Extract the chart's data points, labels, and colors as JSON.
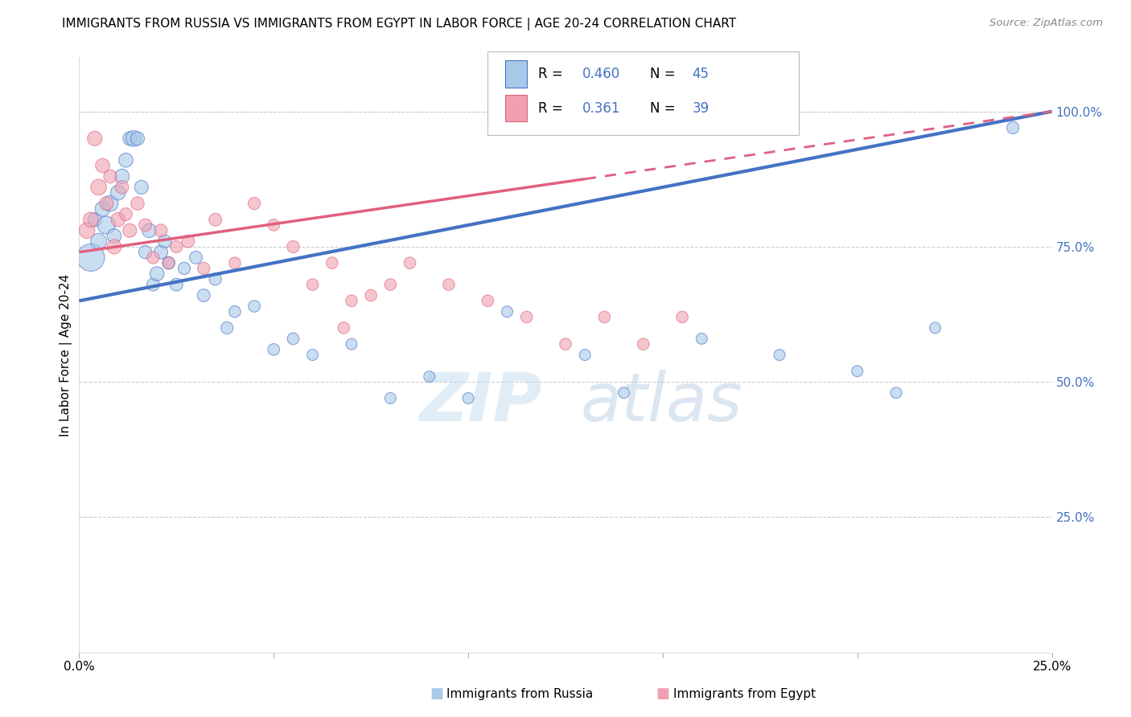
{
  "title": "IMMIGRANTS FROM RUSSIA VS IMMIGRANTS FROM EGYPT IN LABOR FORCE | AGE 20-24 CORRELATION CHART",
  "source": "Source: ZipAtlas.com",
  "ylabel": "In Labor Force | Age 20-24",
  "x_tick_labels": [
    "0.0%",
    "",
    "",
    "",
    "",
    "25.0%"
  ],
  "x_tick_values": [
    0.0,
    5.0,
    10.0,
    15.0,
    20.0,
    25.0
  ],
  "y_tick_labels_right": [
    "100.0%",
    "75.0%",
    "50.0%",
    "25.0%"
  ],
  "y_tick_values_right": [
    100.0,
    75.0,
    50.0,
    25.0
  ],
  "xlim": [
    0.0,
    25.0
  ],
  "ylim": [
    0.0,
    110.0
  ],
  "color_russia": "#a8c8e8",
  "color_egypt": "#f0a0b0",
  "color_russia_line": "#4472c4",
  "color_egypt_line": "#e06080",
  "color_r_value": "#4472c4",
  "russia_scatter_x": [
    0.3,
    0.4,
    0.5,
    0.6,
    0.7,
    0.8,
    0.9,
    1.0,
    1.1,
    1.2,
    1.3,
    1.4,
    1.5,
    1.6,
    1.7,
    1.8,
    1.9,
    2.0,
    2.1,
    2.2,
    2.3,
    2.5,
    2.7,
    3.0,
    3.2,
    3.5,
    3.8,
    4.0,
    4.5,
    5.0,
    5.5,
    6.0,
    7.0,
    8.0,
    9.0,
    10.0,
    11.0,
    13.0,
    14.0,
    16.0,
    18.0,
    20.0,
    21.0,
    22.0,
    24.0
  ],
  "russia_scatter_y": [
    73,
    80,
    76,
    82,
    79,
    83,
    77,
    85,
    88,
    91,
    95,
    95,
    95,
    86,
    74,
    78,
    68,
    70,
    74,
    76,
    72,
    68,
    71,
    73,
    66,
    69,
    60,
    63,
    64,
    56,
    58,
    55,
    57,
    47,
    51,
    47,
    63,
    55,
    48,
    58,
    55,
    52,
    48,
    60,
    97
  ],
  "russia_scatter_size": [
    600,
    150,
    200,
    180,
    250,
    200,
    160,
    180,
    170,
    160,
    150,
    200,
    150,
    150,
    140,
    160,
    130,
    160,
    150,
    140,
    130,
    130,
    120,
    130,
    130,
    120,
    120,
    110,
    110,
    110,
    110,
    100,
    100,
    100,
    100,
    100,
    100,
    100,
    100,
    100,
    100,
    100,
    100,
    100,
    120
  ],
  "egypt_scatter_x": [
    0.2,
    0.3,
    0.4,
    0.5,
    0.6,
    0.7,
    0.8,
    0.9,
    1.0,
    1.1,
    1.2,
    1.3,
    1.5,
    1.7,
    1.9,
    2.1,
    2.3,
    2.5,
    2.8,
    3.2,
    3.5,
    4.0,
    4.5,
    5.0,
    5.5,
    6.0,
    6.5,
    7.5,
    8.5,
    9.5,
    10.5,
    11.5,
    12.5,
    13.5,
    14.5,
    15.5,
    6.8,
    7.0,
    8.0
  ],
  "egypt_scatter_y": [
    78,
    80,
    95,
    86,
    90,
    83,
    88,
    75,
    80,
    86,
    81,
    78,
    83,
    79,
    73,
    78,
    72,
    75,
    76,
    71,
    80,
    72,
    83,
    79,
    75,
    68,
    72,
    66,
    72,
    68,
    65,
    62,
    57,
    62,
    57,
    62,
    60,
    65,
    68
  ],
  "egypt_scatter_size": [
    200,
    180,
    170,
    200,
    160,
    150,
    140,
    170,
    160,
    140,
    130,
    150,
    140,
    130,
    120,
    130,
    110,
    120,
    130,
    120,
    130,
    110,
    120,
    110,
    120,
    110,
    110,
    110,
    110,
    110,
    110,
    110,
    110,
    110,
    110,
    110,
    110,
    110,
    110
  ],
  "russia_line_x0": 0.0,
  "russia_line_x1": 25.0,
  "russia_line_y0": 65.0,
  "russia_line_y1": 100.0,
  "egypt_line_x0": 0.0,
  "egypt_line_x1": 25.0,
  "egypt_line_y0": 74.0,
  "egypt_line_y1": 100.0,
  "egypt_solid_x1": 13.0,
  "watermark_zip": "ZIP",
  "watermark_atlas": "atlas",
  "background_color": "#ffffff",
  "grid_color": "#cccccc",
  "legend_r_russia": "0.460",
  "legend_n_russia": "45",
  "legend_r_egypt": "0.361",
  "legend_n_egypt": "39"
}
